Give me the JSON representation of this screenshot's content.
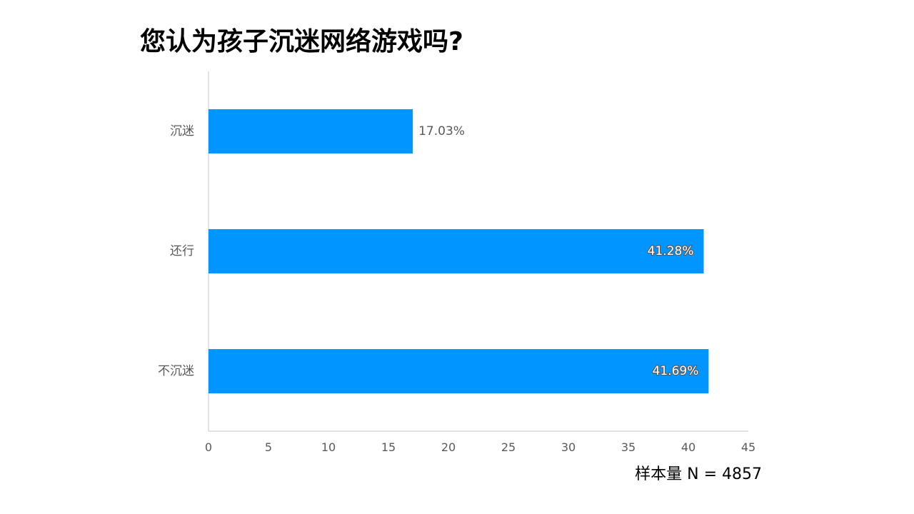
{
  "title": "您认为孩子沉迷网络游戏吗?",
  "sample_note": "样本量 N = 4857",
  "colors": {
    "bar": "#0095FF",
    "axis": "#D9D9D9",
    "label": "#595959"
  },
  "chart_data": {
    "type": "bar",
    "orientation": "horizontal",
    "categories": [
      "沉迷",
      "还行",
      "不沉迷"
    ],
    "values": [
      17.03,
      41.28,
      41.69
    ],
    "data_labels": [
      "17.03%",
      "41.28%",
      "41.69%"
    ],
    "xlim": [
      0,
      45
    ],
    "xticks": [
      0,
      5,
      10,
      15,
      20,
      25,
      30,
      35,
      40,
      45
    ],
    "grid": false,
    "legend": "none"
  }
}
